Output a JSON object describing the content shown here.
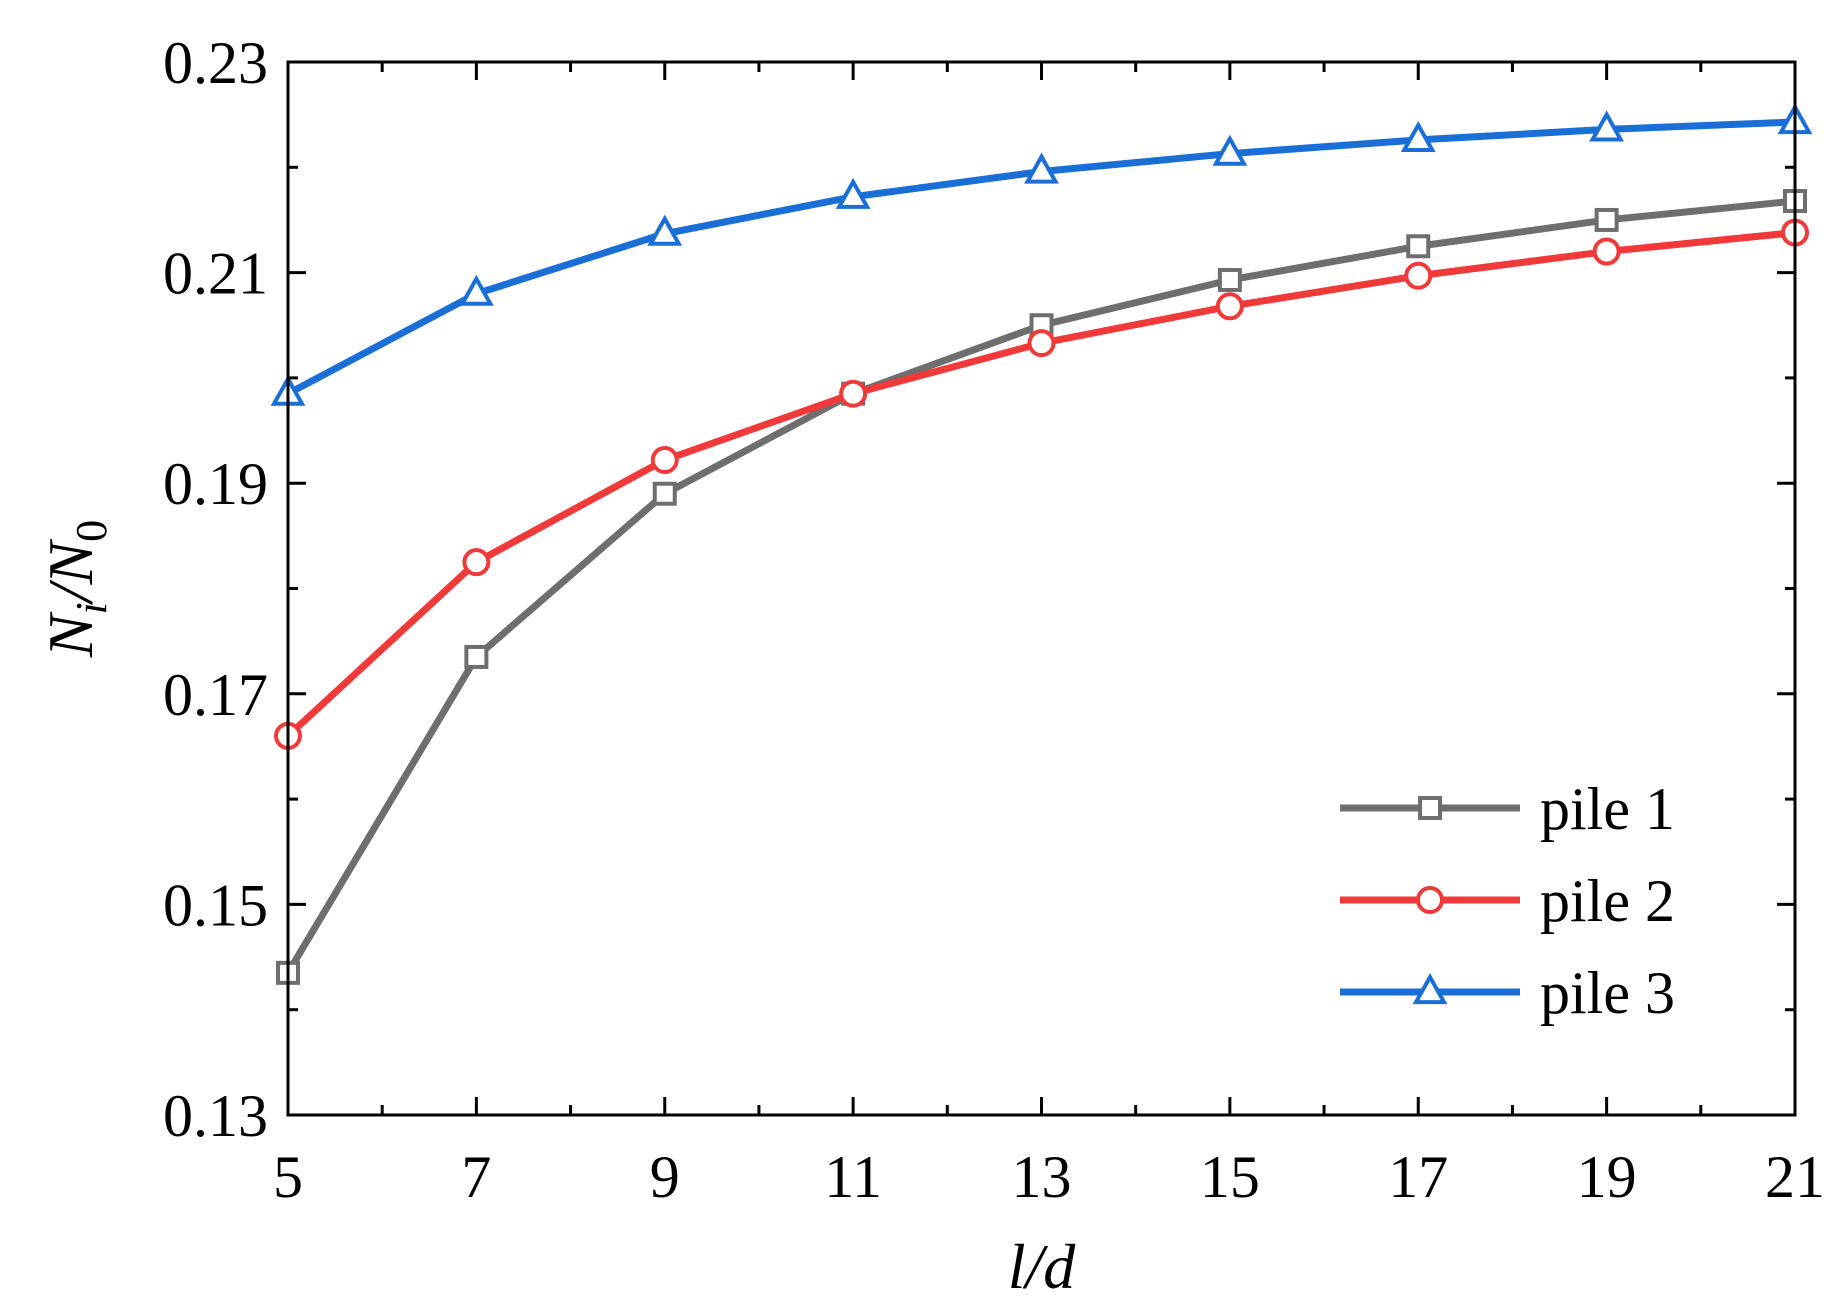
{
  "chart_data": {
    "type": "line",
    "xlabel": "l/d",
    "ylabel": {
      "main": "N",
      "sub1": "i",
      "sep": "/N",
      "sub2": "0"
    },
    "xlim": [
      5,
      21
    ],
    "ylim": [
      0.13,
      0.23
    ],
    "xticks": [
      5,
      7,
      9,
      11,
      13,
      15,
      17,
      19,
      21
    ],
    "xtick_labels": [
      "5",
      "7",
      "9",
      "11",
      "13",
      "15",
      "17",
      "19",
      "21"
    ],
    "yticks": [
      0.13,
      0.15,
      0.17,
      0.19,
      0.21,
      0.23
    ],
    "ytick_labels": [
      "0.13",
      "0.15",
      "0.17",
      "0.19",
      "0.21",
      "0.23"
    ],
    "x": [
      5,
      7,
      9,
      11,
      13,
      15,
      17,
      19,
      21
    ],
    "grid": false,
    "legend_position": "bottom-right",
    "series": [
      {
        "name": "pile 1",
        "color": "#6e6e6e",
        "marker": "square",
        "values": [
          0.1435,
          0.1735,
          0.189,
          0.1985,
          0.205,
          0.2093,
          0.2125,
          0.215,
          0.2168
        ]
      },
      {
        "name": "pile 2",
        "color": "#f03a3a",
        "marker": "circle",
        "values": [
          0.166,
          0.1825,
          0.1922,
          0.1985,
          0.2033,
          0.2068,
          0.2097,
          0.212,
          0.2138
        ]
      },
      {
        "name": "pile 3",
        "color": "#1a6fd6",
        "marker": "triangle",
        "values": [
          0.1985,
          0.208,
          0.2137,
          0.2172,
          0.2196,
          0.2213,
          0.2226,
          0.2236,
          0.2243
        ]
      }
    ]
  }
}
